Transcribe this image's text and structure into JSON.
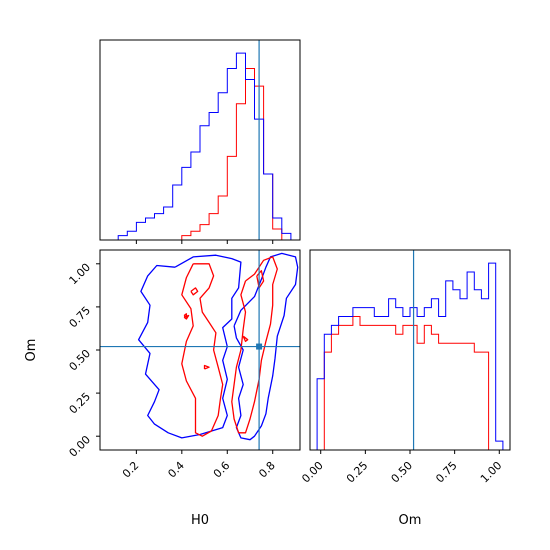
{
  "chart_data": {
    "type": "corner",
    "colors": {
      "series_a": "#0000ff",
      "series_b": "#ff0000",
      "truth": "#1f77b4"
    },
    "parameters": [
      "H0",
      "Om"
    ],
    "truth": {
      "H0": 0.74,
      "Om": 0.52
    },
    "axes": {
      "H0": {
        "label": "H0",
        "lim": [
          0.04,
          0.92
        ],
        "ticks": [
          0.2,
          0.4,
          0.6,
          0.8
        ],
        "tick_labels": [
          "0.2",
          "0.4",
          "0.6",
          "0.8"
        ]
      },
      "Om_y": {
        "label": "Om",
        "lim": [
          -0.08,
          1.08
        ],
        "ticks": [
          0.0,
          0.25,
          0.5,
          0.75,
          1.0
        ],
        "tick_labels": [
          "0.00",
          "0.25",
          "0.50",
          "0.75",
          "1.00"
        ]
      },
      "Om_x": {
        "label": "Om",
        "lim": [
          -0.06,
          1.06
        ],
        "ticks": [
          0.0,
          0.25,
          0.5,
          0.75,
          1.0
        ],
        "tick_labels": [
          "0.00",
          "0.25",
          "0.50",
          "0.75",
          "1.00"
        ]
      }
    },
    "hist_H0": {
      "edges": [
        0.12,
        0.16,
        0.2,
        0.24,
        0.28,
        0.32,
        0.36,
        0.4,
        0.44,
        0.48,
        0.52,
        0.56,
        0.6,
        0.64,
        0.68,
        0.72,
        0.76,
        0.8,
        0.84,
        0.88
      ],
      "series_a": [
        0.02,
        0.04,
        0.08,
        0.1,
        0.12,
        0.15,
        0.25,
        0.33,
        0.4,
        0.52,
        0.58,
        0.67,
        0.78,
        0.85,
        0.73,
        0.55,
        0.3,
        0.1,
        0.03
      ],
      "series_b": [
        0.0,
        0.0,
        0.0,
        0.0,
        0.0,
        0.0,
        0.0,
        0.02,
        0.04,
        0.07,
        0.12,
        0.2,
        0.38,
        0.62,
        0.78,
        0.7,
        0.3,
        0.05,
        0.0
      ]
    },
    "hist_Om": {
      "edges": [
        -0.02,
        0.02,
        0.06,
        0.1,
        0.14,
        0.18,
        0.22,
        0.26,
        0.3,
        0.34,
        0.38,
        0.42,
        0.46,
        0.5,
        0.54,
        0.58,
        0.62,
        0.66,
        0.7,
        0.74,
        0.78,
        0.82,
        0.86,
        0.9,
        0.94,
        0.98,
        1.02
      ],
      "series_a": [
        0.08,
        0.13,
        0.14,
        0.15,
        0.15,
        0.16,
        0.16,
        0.16,
        0.15,
        0.15,
        0.17,
        0.16,
        0.15,
        0.16,
        0.15,
        0.16,
        0.17,
        0.15,
        0.19,
        0.18,
        0.17,
        0.2,
        0.18,
        0.17,
        0.21,
        0.01
      ],
      "series_b": [
        0.0,
        0.11,
        0.13,
        0.14,
        0.14,
        0.15,
        0.14,
        0.14,
        0.14,
        0.14,
        0.14,
        0.13,
        0.14,
        0.14,
        0.12,
        0.14,
        0.13,
        0.12,
        0.12,
        0.12,
        0.12,
        0.12,
        0.11,
        0.11,
        0.0,
        0.0
      ]
    },
    "contours_2d": {
      "series_a": [
        [
          [
            0.37,
            0.98
          ],
          [
            0.45,
            1.04
          ],
          [
            0.55,
            1.05
          ],
          [
            0.62,
            1.03
          ],
          [
            0.66,
            1.01
          ],
          [
            0.65,
            0.86
          ],
          [
            0.62,
            0.8
          ],
          [
            0.62,
            0.68
          ],
          [
            0.58,
            0.63
          ],
          [
            0.6,
            0.52
          ],
          [
            0.58,
            0.44
          ],
          [
            0.6,
            0.33
          ],
          [
            0.58,
            0.22
          ],
          [
            0.6,
            0.12
          ],
          [
            0.58,
            0.05
          ],
          [
            0.48,
            0.01
          ],
          [
            0.4,
            -0.01
          ],
          [
            0.34,
            0.02
          ],
          [
            0.28,
            0.07
          ],
          [
            0.25,
            0.12
          ],
          [
            0.28,
            0.2
          ],
          [
            0.3,
            0.27
          ],
          [
            0.24,
            0.36
          ],
          [
            0.26,
            0.48
          ],
          [
            0.21,
            0.56
          ],
          [
            0.25,
            0.66
          ],
          [
            0.26,
            0.76
          ],
          [
            0.22,
            0.84
          ],
          [
            0.25,
            0.93
          ],
          [
            0.29,
            0.99
          ],
          [
            0.37,
            0.98
          ]
        ],
        [
          [
            0.63,
            0.64
          ],
          [
            0.66,
            0.73
          ],
          [
            0.72,
            0.81
          ],
          [
            0.75,
            0.91
          ],
          [
            0.77,
            0.98
          ],
          [
            0.79,
            1.04
          ],
          [
            0.84,
            1.06
          ],
          [
            0.9,
            1.04
          ],
          [
            0.91,
            0.98
          ],
          [
            0.9,
            0.88
          ],
          [
            0.86,
            0.8
          ],
          [
            0.85,
            0.7
          ],
          [
            0.82,
            0.58
          ],
          [
            0.81,
            0.45
          ],
          [
            0.8,
            0.35
          ],
          [
            0.78,
            0.22
          ],
          [
            0.77,
            0.13
          ],
          [
            0.75,
            0.06
          ],
          [
            0.72,
            0.0
          ],
          [
            0.7,
            -0.02
          ],
          [
            0.66,
            -0.01
          ],
          [
            0.64,
            0.05
          ],
          [
            0.66,
            0.12
          ],
          [
            0.65,
            0.22
          ],
          [
            0.67,
            0.3
          ],
          [
            0.65,
            0.4
          ],
          [
            0.67,
            0.5
          ],
          [
            0.64,
            0.57
          ],
          [
            0.63,
            0.64
          ]
        ]
      ],
      "series_b": [
        [
          [
            0.45,
            1.0
          ],
          [
            0.52,
            1.0
          ],
          [
            0.54,
            0.93
          ],
          [
            0.52,
            0.86
          ],
          [
            0.48,
            0.8
          ],
          [
            0.49,
            0.72
          ],
          [
            0.52,
            0.66
          ],
          [
            0.55,
            0.6
          ],
          [
            0.54,
            0.5
          ],
          [
            0.56,
            0.4
          ],
          [
            0.58,
            0.3
          ],
          [
            0.57,
            0.22
          ],
          [
            0.56,
            0.12
          ],
          [
            0.53,
            0.03
          ],
          [
            0.49,
            0.0
          ],
          [
            0.46,
            0.02
          ],
          [
            0.46,
            0.12
          ],
          [
            0.46,
            0.22
          ],
          [
            0.42,
            0.32
          ],
          [
            0.4,
            0.42
          ],
          [
            0.42,
            0.55
          ],
          [
            0.45,
            0.64
          ],
          [
            0.44,
            0.74
          ],
          [
            0.4,
            0.82
          ],
          [
            0.42,
            0.92
          ],
          [
            0.45,
            1.0
          ]
        ],
        [
          [
            0.68,
            0.9
          ],
          [
            0.72,
            0.94
          ],
          [
            0.76,
            1.02
          ],
          [
            0.8,
            1.04
          ],
          [
            0.82,
            0.97
          ],
          [
            0.8,
            0.88
          ],
          [
            0.8,
            0.76
          ],
          [
            0.79,
            0.65
          ],
          [
            0.77,
            0.55
          ],
          [
            0.75,
            0.44
          ],
          [
            0.74,
            0.33
          ],
          [
            0.72,
            0.2
          ],
          [
            0.7,
            0.1
          ],
          [
            0.68,
            0.02
          ],
          [
            0.65,
            0.02
          ],
          [
            0.63,
            0.1
          ],
          [
            0.62,
            0.2
          ],
          [
            0.63,
            0.3
          ],
          [
            0.64,
            0.4
          ],
          [
            0.66,
            0.5
          ],
          [
            0.67,
            0.62
          ],
          [
            0.68,
            0.72
          ],
          [
            0.66,
            0.82
          ],
          [
            0.68,
            0.9
          ]
        ],
        [
          [
            0.73,
            0.93
          ],
          [
            0.75,
            0.96
          ],
          [
            0.76,
            0.9
          ],
          [
            0.74,
            0.86
          ],
          [
            0.73,
            0.93
          ]
        ],
        [
          [
            0.67,
            0.58
          ],
          [
            0.69,
            0.56
          ],
          [
            0.68,
            0.55
          ],
          [
            0.67,
            0.58
          ]
        ],
        [
          [
            0.5,
            0.39
          ],
          [
            0.52,
            0.4
          ],
          [
            0.5,
            0.41
          ],
          [
            0.5,
            0.39
          ]
        ],
        [
          [
            0.44,
            0.84
          ],
          [
            0.46,
            0.86
          ],
          [
            0.47,
            0.84
          ],
          [
            0.45,
            0.82
          ],
          [
            0.44,
            0.84
          ]
        ],
        [
          [
            0.41,
            0.7
          ],
          [
            0.42,
            0.71
          ],
          [
            0.42,
            0.69
          ],
          [
            0.41,
            0.7
          ]
        ],
        [
          [
            0.41,
            0.69
          ],
          [
            0.43,
            0.7
          ],
          [
            0.42,
            0.68
          ],
          [
            0.41,
            0.69
          ]
        ]
      ]
    }
  }
}
